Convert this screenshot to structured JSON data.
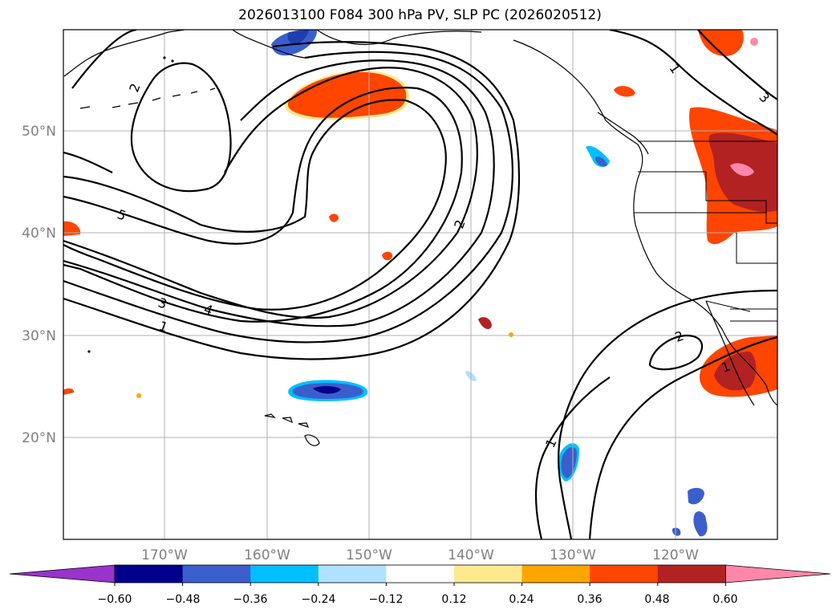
{
  "title": "2026013100 F084 300 hPa PV, SLP PC (2026020512)",
  "lat_labels": [
    "50°N",
    "40°N",
    "30°N",
    "20°N"
  ],
  "lon_labels": [
    "170°W",
    "160°W",
    "150°W",
    "140°W",
    "130°W",
    "120°W"
  ],
  "colorbar": {
    "ticks": [
      "−0.60",
      "−0.48",
      "−0.36",
      "−0.24",
      "−0.12",
      "0.12",
      "0.24",
      "0.36",
      "0.48",
      "0.60"
    ],
    "colors": [
      "#9933cc",
      "#00008b",
      "#3a5fcd",
      "#00bfff",
      "#b0e2ff",
      "#ffffff",
      "#ffe98f",
      "#ffa500",
      "#ff4500",
      "#b22222",
      "#ff88aa"
    ]
  },
  "contour_labels": [
    "2",
    "5",
    "3",
    "4",
    "1",
    "2",
    "1",
    "3",
    "2",
    "1",
    "1"
  ]
}
